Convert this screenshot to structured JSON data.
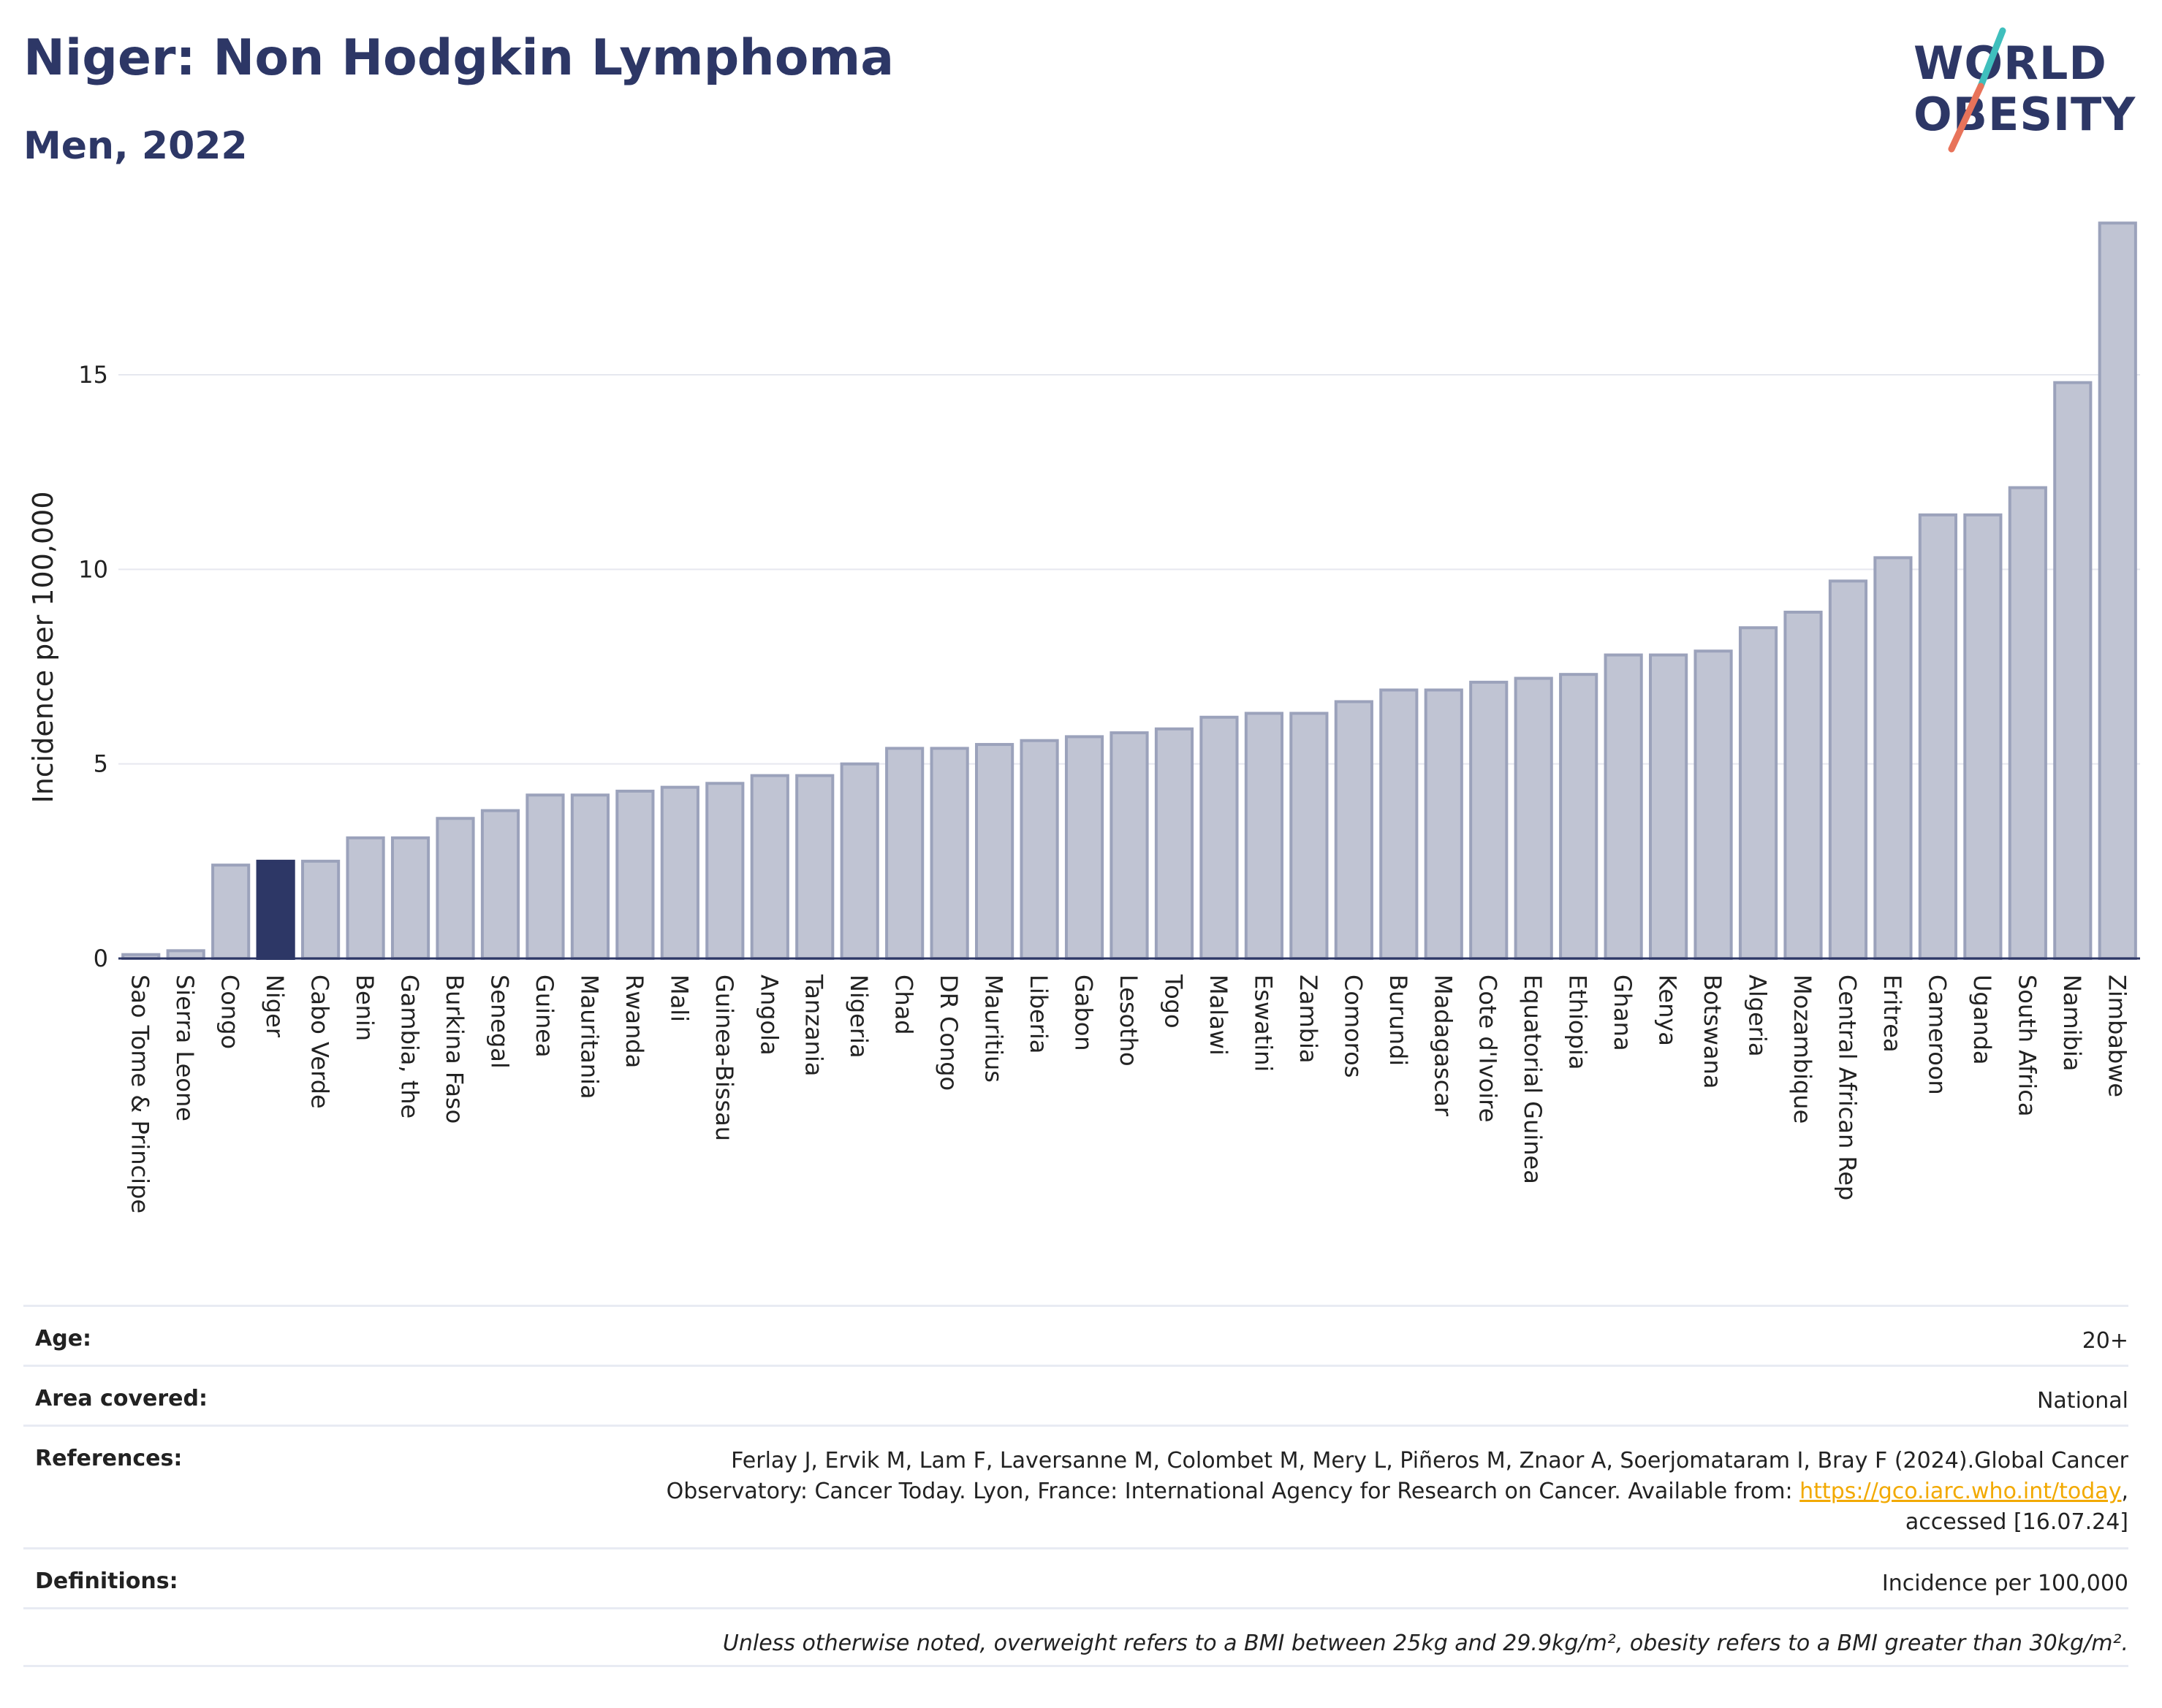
{
  "header": {
    "title": "Niger: Non Hodgkin Lymphoma",
    "subtitle": "Men, 2022"
  },
  "logo": {
    "line1": "WORLD",
    "line2": "OBESITY",
    "slash_colors": [
      "#3fbfbd",
      "#e8735a"
    ]
  },
  "colors": {
    "highlight": "#2d3766",
    "bar_fill": "#c0c4d3",
    "bar_stroke": "#9ba2bb",
    "gridline": "#e6e8ef"
  },
  "chart_data": {
    "type": "bar",
    "title": "Niger: Non Hodgkin Lymphoma",
    "subtitle": "Men, 2022",
    "ylabel": "Incidence per 100,000",
    "xlabel": "",
    "ylim": [
      0,
      19
    ],
    "yticks": [
      0,
      5,
      10,
      15
    ],
    "grid": true,
    "highlight": "Niger",
    "categories": [
      "Sao Tome & Principe",
      "Sierra Leone",
      "Congo",
      "Niger",
      "Cabo Verde",
      "Benin",
      "Gambia, the",
      "Burkina Faso",
      "Senegal",
      "Guinea",
      "Mauritania",
      "Rwanda",
      "Mali",
      "Guinea-Bissau",
      "Angola",
      "Tanzania",
      "Nigeria",
      "Chad",
      "DR Congo",
      "Mauritius",
      "Liberia",
      "Gabon",
      "Lesotho",
      "Togo",
      "Malawi",
      "Eswatini",
      "Zambia",
      "Comoros",
      "Burundi",
      "Madagascar",
      "Cote d'Ivoire",
      "Equatorial Guinea",
      "Ethiopia",
      "Ghana",
      "Kenya",
      "Botswana",
      "Algeria",
      "Mozambique",
      "Central African Rep",
      "Eritrea",
      "Cameroon",
      "Uganda",
      "South Africa",
      "Namibia",
      "Zimbabwe"
    ],
    "values": [
      0.1,
      0.2,
      2.4,
      2.5,
      2.5,
      3.1,
      3.1,
      3.6,
      3.8,
      4.2,
      4.2,
      4.3,
      4.4,
      4.5,
      4.7,
      4.7,
      5.0,
      5.4,
      5.4,
      5.5,
      5.6,
      5.7,
      5.8,
      5.9,
      6.2,
      6.3,
      6.3,
      6.6,
      6.9,
      6.9,
      7.1,
      7.2,
      7.3,
      7.8,
      7.8,
      7.9,
      8.5,
      8.9,
      9.7,
      10.3,
      11.4,
      11.4,
      12.1,
      14.8,
      18.9
    ]
  },
  "info": {
    "age_label": "Age:",
    "age_value": "20+",
    "area_label": "Area covered:",
    "area_value": "National",
    "references_label": "References:",
    "references_line1": "Ferlay J, Ervik M, Lam F, Laversanne M, Colombet M, Mery L, Piñeros M, Znaor A, Soerjomataram I, Bray F (2024).Global Cancer",
    "references_line2_pre": "Observatory: Cancer Today. Lyon, France: International Agency for Research on Cancer. Available from: ",
    "references_link": "https://gco.iarc.who.int/today",
    "references_line2_post": ",",
    "references_line3": "accessed [16.07.24]",
    "definitions_label": "Definitions:",
    "definitions_value": "Incidence per 100,000",
    "note": "Unless otherwise noted, overweight refers to a BMI between 25kg and 29.9kg/m², obesity refers to a BMI greater than 30kg/m²."
  }
}
